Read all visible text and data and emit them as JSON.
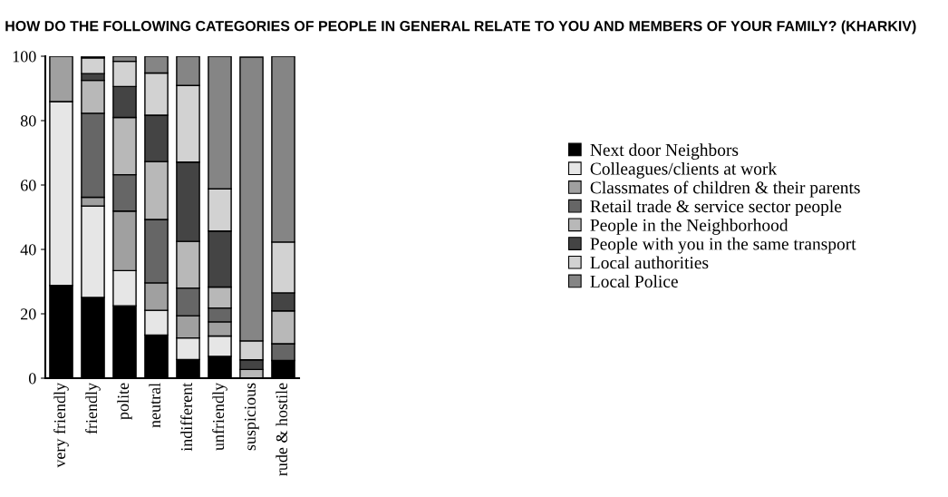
{
  "chart_data": {
    "type": "bar",
    "stacked": true,
    "title": "HOW DO THE FOLLOWING CATEGORIES OF PEOPLE IN GENERAL RELATE TO YOU AND MEMBERS OF YOUR FAMILY? (KHARKIV)",
    "categories": [
      "very friendly",
      "friendly",
      "polite",
      "neutral",
      "indifferent",
      "unfriendly",
      "suspicious",
      "rude & hostile"
    ],
    "series": [
      {
        "name": "Next door Neighbors",
        "color": "#000000",
        "values": [
          28.8,
          25.1,
          22.5,
          13.4,
          5.8,
          6.8,
          null,
          5.5
        ]
      },
      {
        "name": "Colleagues/clients at work",
        "color": "#e6e6e6",
        "values": [
          57.1,
          28.4,
          10.9,
          7.7,
          6.7,
          6.3,
          0,
          0
        ]
      },
      {
        "name": "Classmates of children & their parents",
        "color": "#a0a0a0",
        "values": [
          14.1,
          2.7,
          18.5,
          8.5,
          6.9,
          4.4,
          0,
          0
        ]
      },
      {
        "name": "Retail trade & service sector people",
        "color": "#666666",
        "values": [
          0,
          26.1,
          11.3,
          19.7,
          8.6,
          4.3,
          0,
          5.2
        ]
      },
      {
        "name": "People in the Neighborhood",
        "color": "#b8b8b8",
        "values": [
          0,
          10.2,
          17.8,
          18.0,
          14.5,
          6.5,
          2.7,
          10.2
        ]
      },
      {
        "name": "People with you in the same transport",
        "color": "#444444",
        "values": [
          0,
          2.1,
          9.6,
          14.4,
          24.6,
          17.4,
          3.0,
          5.6
        ]
      },
      {
        "name": "Local authorities",
        "color": "#d2d2d2",
        "values": [
          0,
          4.9,
          7.8,
          13.1,
          23.8,
          13.1,
          5.9,
          15.8
        ]
      },
      {
        "name": "Local Police",
        "color": "#858585",
        "values": [
          0,
          0.5,
          1.6,
          5.2,
          9.1,
          41.2,
          88.1,
          57.7
        ]
      }
    ],
    "ylim": [
      0,
      100
    ],
    "yticks": [
      0,
      20,
      40,
      60,
      80,
      100
    ],
    "grid": false,
    "legend": "right"
  }
}
